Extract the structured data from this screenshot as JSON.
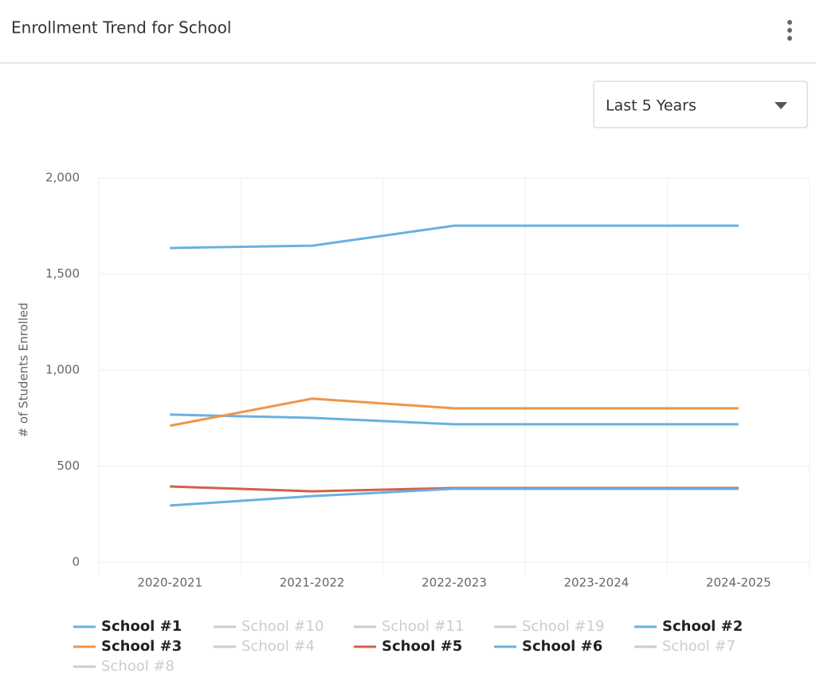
{
  "header": {
    "title": "Enrollment Trend for School",
    "dropdown": "Last 5 Years"
  },
  "chart_data": {
    "type": "line",
    "y_label": "# of Students Enrolled",
    "categories": [
      "2020-2021",
      "2021-2022",
      "2022-2023",
      "2023-2024",
      "2024-2025"
    ],
    "ylim": [
      0,
      2000
    ],
    "yticks": [
      0,
      500,
      {
        "value": 1000,
        "label": "1,000"
      },
      {
        "value": 1500,
        "label": "1,500"
      },
      {
        "value": 2000,
        "label": "2,000"
      }
    ],
    "grid": true,
    "legend": "bottom",
    "series": [
      {
        "name": "School #1",
        "color": "#6ab0e0",
        "visible": true,
        "values": [
          1635,
          1647,
          1751,
          1751,
          1751
        ]
      },
      {
        "name": "School #10",
        "color": "#cccccc",
        "visible": false,
        "values": [
          null,
          null,
          null,
          null,
          null
        ]
      },
      {
        "name": "School #11",
        "color": "#cccccc",
        "visible": false,
        "values": [
          null,
          null,
          null,
          null,
          null
        ]
      },
      {
        "name": "School #19",
        "color": "#cccccc",
        "visible": false,
        "values": [
          null,
          null,
          null,
          null,
          null
        ]
      },
      {
        "name": "School #2",
        "color": "#6ab0e0",
        "visible": true,
        "values": [
          768,
          751,
          718,
          718,
          718
        ]
      },
      {
        "name": "School #3",
        "color": "#ef9549",
        "visible": true,
        "values": [
          710,
          851,
          801,
          801,
          801
        ]
      },
      {
        "name": "School #4",
        "color": "#cccccc",
        "visible": false,
        "values": [
          null,
          null,
          null,
          null,
          null
        ]
      },
      {
        "name": "School #5",
        "color": "#d3614a",
        "visible": true,
        "values": [
          394,
          369,
          386,
          386,
          386
        ]
      },
      {
        "name": "School #6",
        "color": "#6ab0e0",
        "visible": true,
        "values": [
          295,
          344,
          382,
          382,
          382
        ]
      },
      {
        "name": "School #7",
        "color": "#cccccc",
        "visible": false,
        "values": [
          null,
          null,
          null,
          null,
          null
        ]
      },
      {
        "name": "School #8",
        "color": "#cccccc",
        "visible": false,
        "values": [
          null,
          null,
          null,
          null,
          null
        ]
      }
    ]
  }
}
